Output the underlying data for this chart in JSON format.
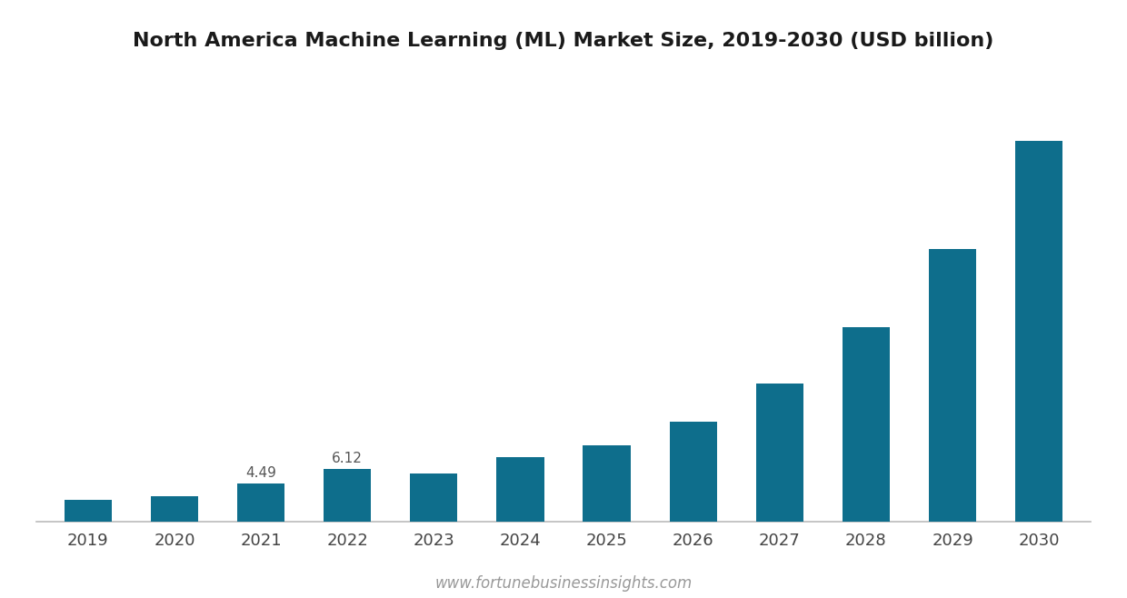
{
  "title": "North America Machine Learning (ML) Market Size, 2019-2030 (USD billion)",
  "years": [
    "2019",
    "2020",
    "2021",
    "2022",
    "2023",
    "2024",
    "2025",
    "2026",
    "2027",
    "2028",
    "2029",
    "2030"
  ],
  "values": [
    2.57,
    3.03,
    4.49,
    6.12,
    5.6,
    7.5,
    8.8,
    11.6,
    16.0,
    22.5,
    31.5,
    44.0
  ],
  "bar_color": "#0e6e8c",
  "background_color": "#ffffff",
  "label_annotations": [
    {
      "year_idx": 2,
      "label": "4.49"
    },
    {
      "year_idx": 3,
      "label": "6.12"
    }
  ],
  "watermark": "www.fortunebusinessinsights.com",
  "title_fontsize": 16,
  "tick_fontsize": 13,
  "annotation_fontsize": 11,
  "watermark_fontsize": 12,
  "ylim": [
    0,
    52
  ]
}
